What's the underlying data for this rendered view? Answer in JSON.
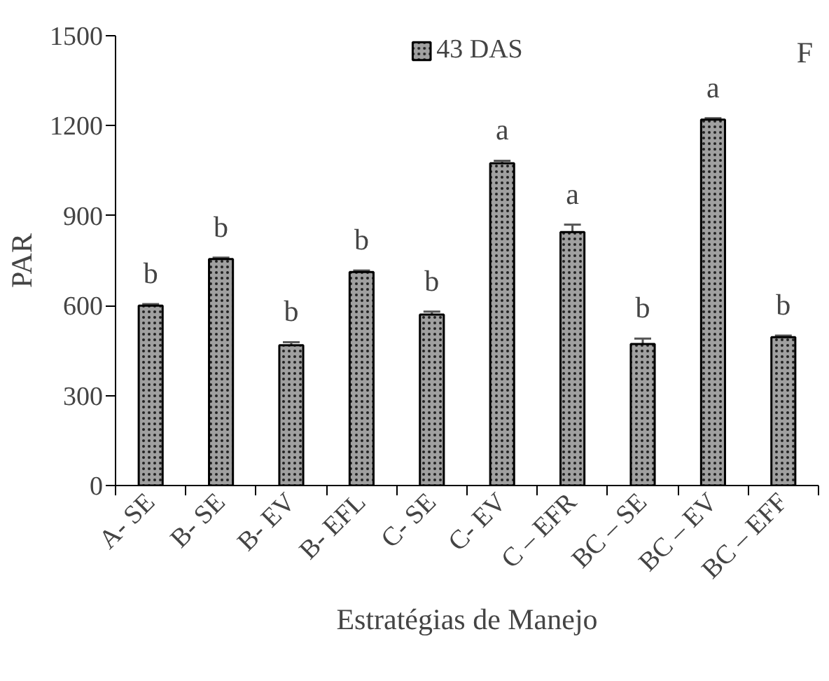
{
  "chart_data": {
    "type": "bar",
    "xlabel": "Estratégias de Manejo",
    "ylabel": "PAR",
    "categories": [
      "A- SE",
      "B- SE",
      "B- EV",
      "B- EFL",
      "C- SE",
      "C- EV",
      "C – EFR",
      "BC – SE",
      "BC – EV",
      "BC – EFF"
    ],
    "series": [
      {
        "name": "43 DAS",
        "color": "#a0a0a0",
        "values": [
          600,
          755,
          468,
          712,
          570,
          1075,
          845,
          472,
          1220,
          495
        ],
        "errors": [
          5,
          5,
          10,
          5,
          10,
          8,
          25,
          18,
          5,
          5
        ]
      }
    ],
    "ylim": [
      0,
      1500
    ],
    "yticks": [
      0,
      300,
      600,
      900,
      1200,
      1500
    ],
    "grid": false,
    "legend": "top",
    "annotations": [
      {
        "text": "b",
        "x": "A- SE",
        "y": 600
      },
      {
        "text": "b",
        "x": "B- SE",
        "y": 755
      },
      {
        "text": "b",
        "x": "B- EV",
        "y": 468
      },
      {
        "text": "b",
        "x": "B- EFL",
        "y": 712
      },
      {
        "text": "b",
        "x": "C- SE",
        "y": 570
      },
      {
        "text": "a",
        "x": "C- EV",
        "y": 1075
      },
      {
        "text": "a",
        "x": "C – EFR",
        "y": 845
      },
      {
        "text": "b",
        "x": "BC – SE",
        "y": 472
      },
      {
        "text": "a",
        "x": "BC – EV",
        "y": 1220
      },
      {
        "text": "b",
        "x": "BC – EFF",
        "y": 495
      },
      "F"
    ]
  }
}
